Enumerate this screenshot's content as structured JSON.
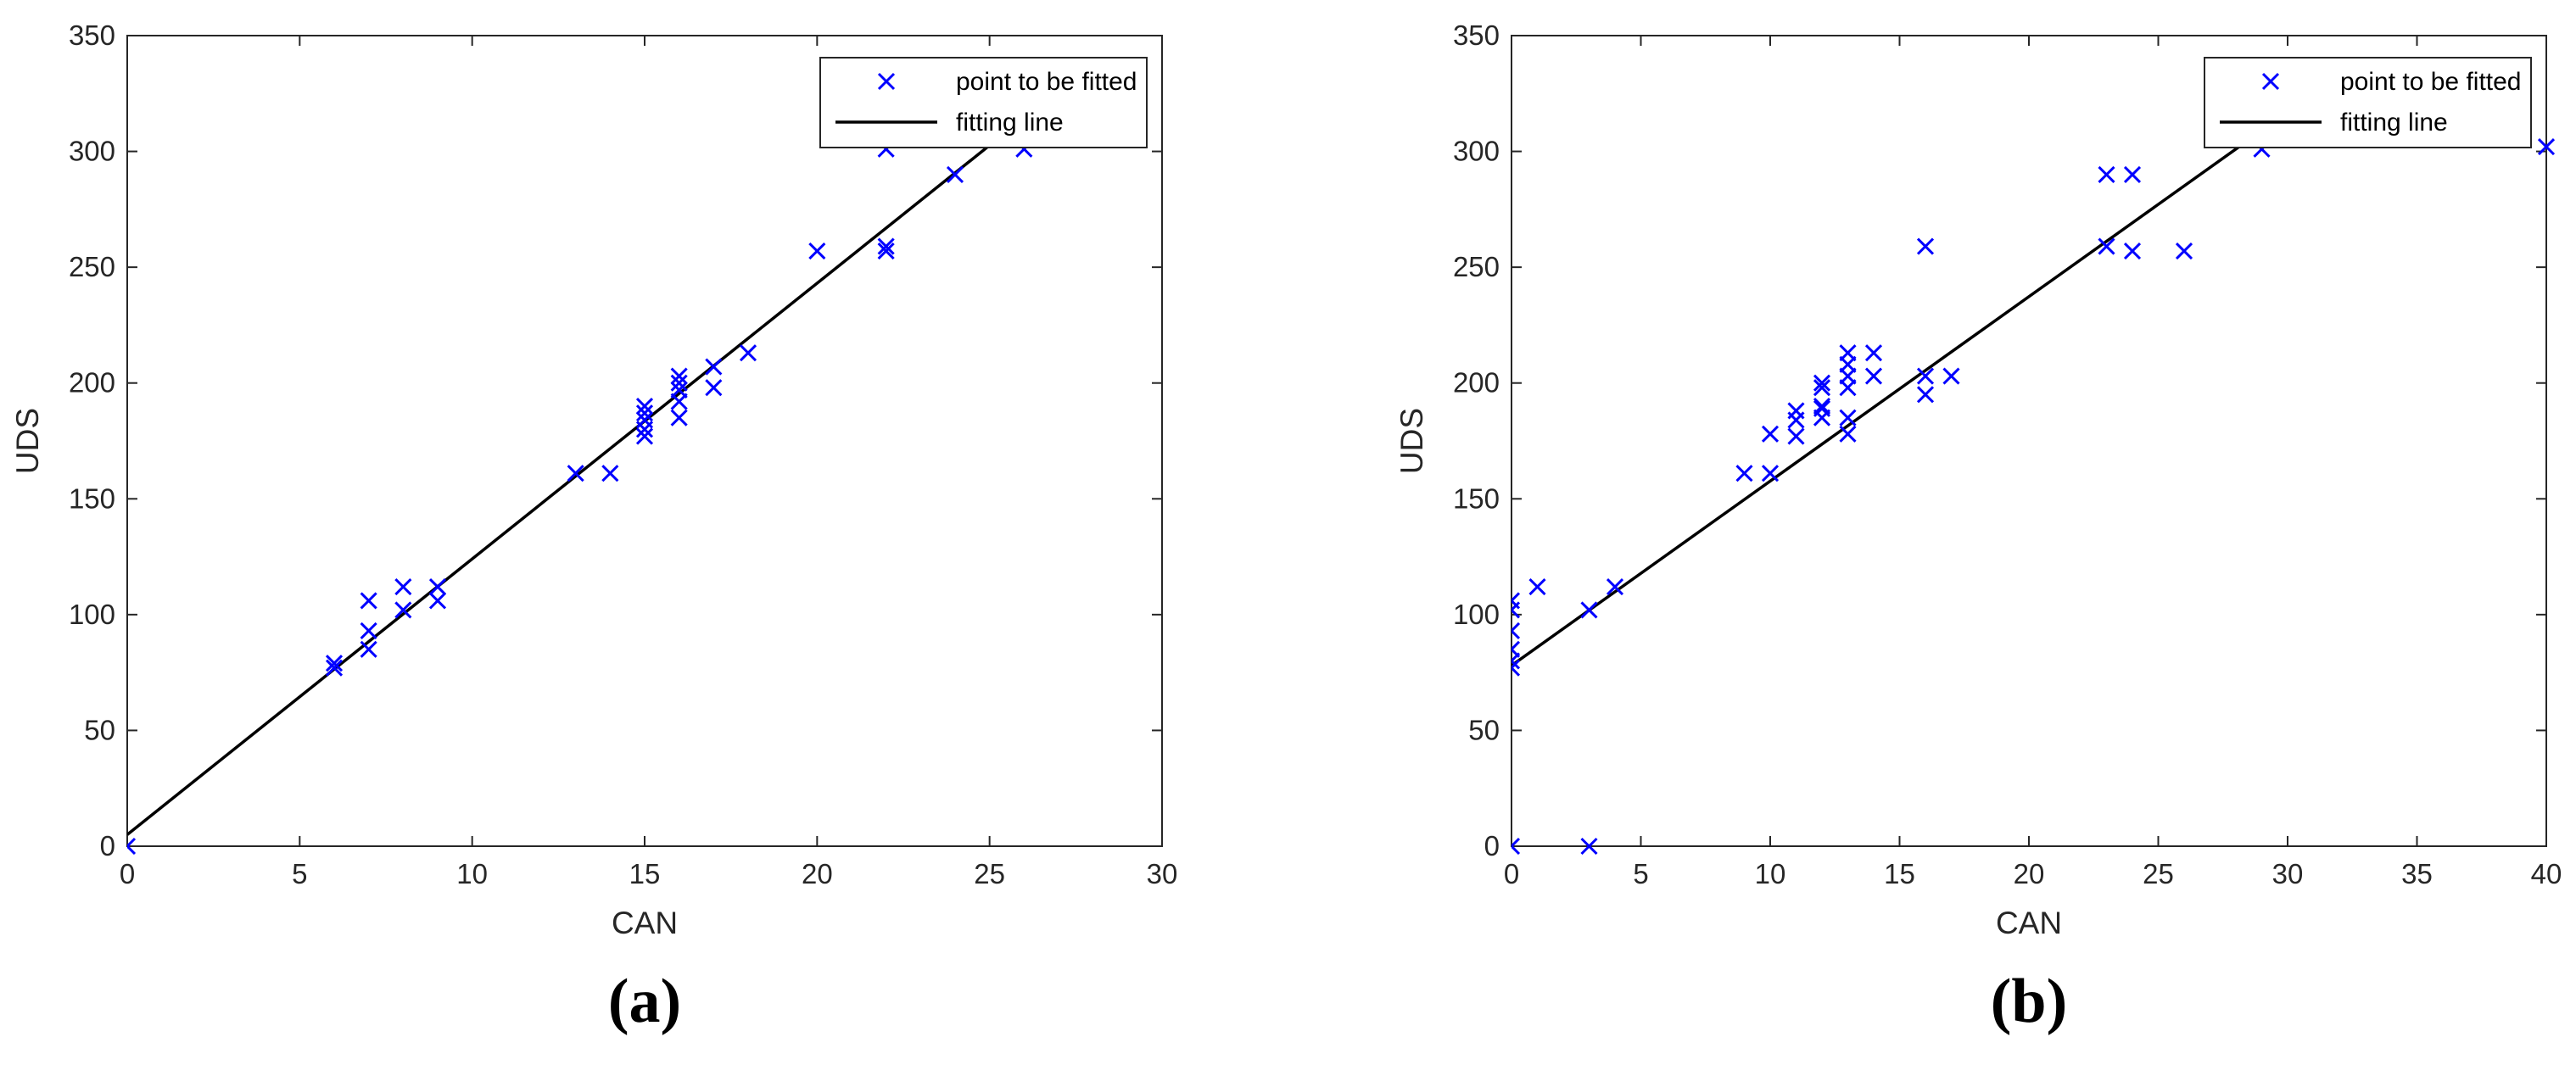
{
  "chart_data": [
    {
      "type": "scatter",
      "panel_label": "(a)",
      "xlabel": "CAN",
      "ylabel": "UDS",
      "xlim": [
        0,
        30
      ],
      "ylim": [
        0,
        350
      ],
      "xticks": [
        0,
        5,
        10,
        15,
        20,
        25,
        30
      ],
      "yticks": [
        0,
        50,
        100,
        150,
        200,
        250,
        300,
        350
      ],
      "legend_position": "top-right",
      "series": [
        {
          "name": "point to be fitted",
          "kind": "scatter",
          "marker": "x",
          "color": "#0000ff",
          "points": [
            [
              0,
              0
            ],
            [
              6,
              77
            ],
            [
              6,
              79
            ],
            [
              7,
              85
            ],
            [
              7,
              93
            ],
            [
              7,
              106
            ],
            [
              8,
              102
            ],
            [
              8,
              112
            ],
            [
              9,
              106
            ],
            [
              9,
              112
            ],
            [
              13,
              161
            ],
            [
              14,
              161
            ],
            [
              15,
              177
            ],
            [
              15,
              180
            ],
            [
              15,
              184
            ],
            [
              15,
              187
            ],
            [
              15,
              190
            ],
            [
              16,
              185
            ],
            [
              16,
              192
            ],
            [
              16,
              197
            ],
            [
              16,
              200
            ],
            [
              16,
              203
            ],
            [
              17,
              198
            ],
            [
              17,
              207
            ],
            [
              18,
              213
            ],
            [
              20,
              257
            ],
            [
              22,
              257
            ],
            [
              22,
              259
            ],
            [
              22,
              301
            ],
            [
              24,
              290
            ],
            [
              26,
              301
            ]
          ]
        },
        {
          "name": "fitting line",
          "kind": "line",
          "color": "#000000",
          "points": [
            [
              0,
              5
            ],
            [
              25.2,
              305
            ]
          ]
        }
      ]
    },
    {
      "type": "scatter",
      "panel_label": "(b)",
      "xlabel": "CAN",
      "ylabel": "UDS",
      "xlim": [
        0,
        40
      ],
      "ylim": [
        0,
        350
      ],
      "xticks": [
        0,
        5,
        10,
        15,
        20,
        25,
        30,
        35,
        40
      ],
      "yticks": [
        0,
        50,
        100,
        150,
        200,
        250,
        300,
        350
      ],
      "legend_position": "top-right",
      "series": [
        {
          "name": "point to be fitted",
          "kind": "scatter",
          "marker": "x",
          "color": "#0000ff",
          "points": [
            [
              0,
              0
            ],
            [
              0,
              77
            ],
            [
              0,
              80
            ],
            [
              0,
              85
            ],
            [
              0,
              93
            ],
            [
              0,
              102
            ],
            [
              0,
              106
            ],
            [
              1,
              112
            ],
            [
              3,
              0
            ],
            [
              3,
              102
            ],
            [
              4,
              112
            ],
            [
              9,
              161
            ],
            [
              10,
              161
            ],
            [
              10,
              178
            ],
            [
              11,
              177
            ],
            [
              11,
              184
            ],
            [
              11,
              188
            ],
            [
              12,
              185
            ],
            [
              12,
              189
            ],
            [
              12,
              190
            ],
            [
              12,
              198
            ],
            [
              12,
              200
            ],
            [
              13,
              178
            ],
            [
              13,
              185
            ],
            [
              13,
              198
            ],
            [
              13,
              203
            ],
            [
              13,
              208
            ],
            [
              13,
              213
            ],
            [
              14,
              203
            ],
            [
              14,
              213
            ],
            [
              16,
              195
            ],
            [
              16,
              203
            ],
            [
              16,
              259
            ],
            [
              17,
              203
            ],
            [
              23,
              259
            ],
            [
              23,
              290
            ],
            [
              24,
              257
            ],
            [
              24,
              290
            ],
            [
              26,
              257
            ],
            [
              29,
              301
            ],
            [
              40,
              302
            ]
          ]
        },
        {
          "name": "fitting line",
          "kind": "line",
          "color": "#000000",
          "points": [
            [
              0,
              78
            ],
            [
              28.5,
              305
            ]
          ]
        }
      ]
    }
  ]
}
